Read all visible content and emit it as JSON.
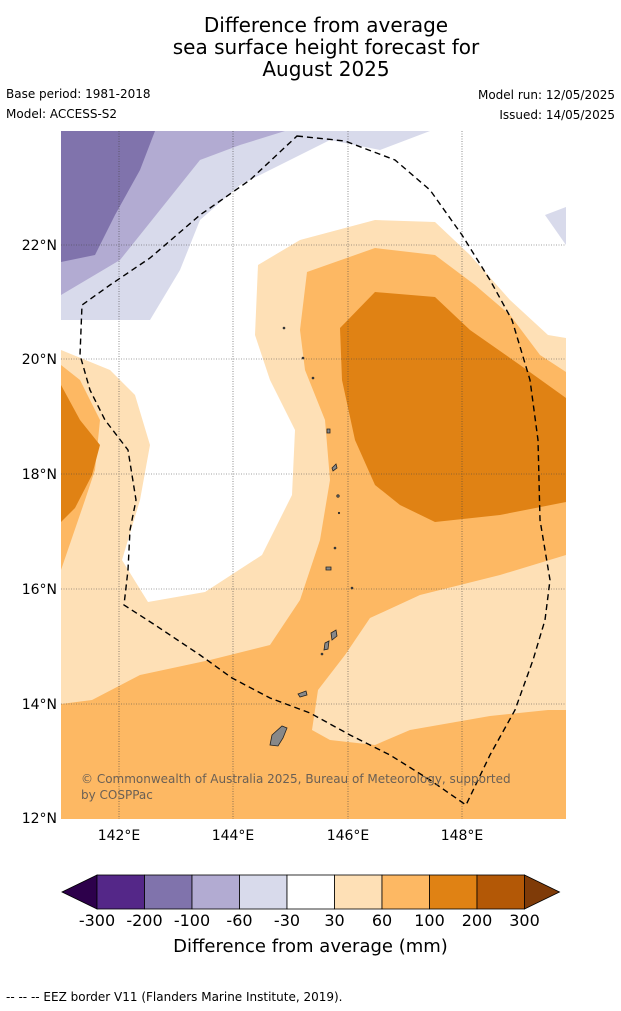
{
  "title": {
    "line1": "Difference from average",
    "line2": "sea surface height forecast for",
    "line3": "August 2025"
  },
  "meta": {
    "base_period": "Base period: 1981-2018",
    "model": "Model: ACCESS-S2",
    "model_run": "Model run: 12/05/2025",
    "issued": "Issued: 14/05/2025"
  },
  "map": {
    "lon_range": [
      141,
      149.8
    ],
    "lat_range": [
      12,
      24
    ],
    "lat_ticks": [
      "22°N",
      "20°N",
      "18°N",
      "16°N",
      "14°N",
      "12°N"
    ],
    "lon_ticks": [
      "142°E",
      "144°E",
      "146°E",
      "148°E"
    ],
    "copyright_line1": "© Commonwealth of Australia 2025, Bureau of Meteorology, supported",
    "copyright_line2": "by COSPPac"
  },
  "colorbar": {
    "ticks": [
      "-300",
      "-200",
      "-100",
      "-60",
      "-30",
      "30",
      "60",
      "100",
      "200",
      "300"
    ],
    "colors": [
      "#2d004b",
      "#542788",
      "#8073ac",
      "#b2abd2",
      "#d8daeb",
      "#ffffff",
      "#fee0b6",
      "#fdb863",
      "#e08214",
      "#b35806",
      "#7f3b08"
    ],
    "title": "Difference from average (mm)"
  },
  "footnote": "--  --  -- EEZ border V11 (Flanders Marine Institute, 2019)."
}
